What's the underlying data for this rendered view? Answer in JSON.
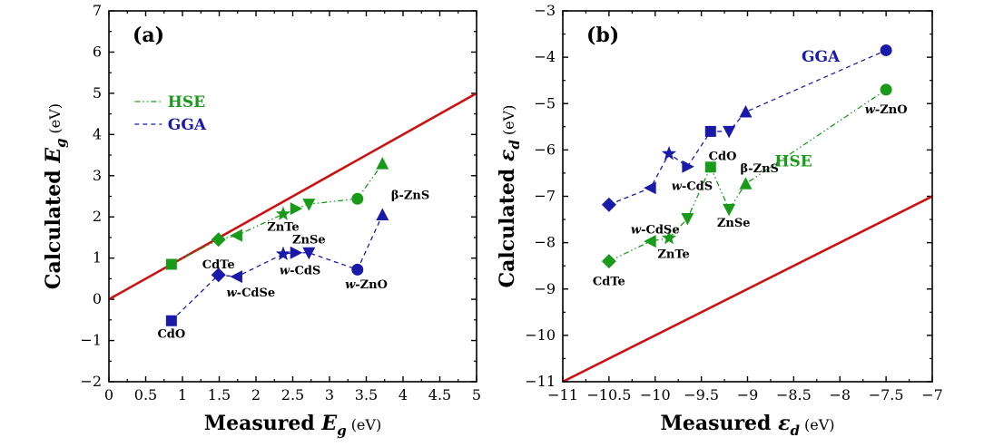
{
  "chart_data": [
    {
      "type": "line",
      "panel_label": "(a)",
      "xlabel": "Measured E",
      "xlabel_sub": "g",
      "xlabel_unit": "(eV)",
      "ylabel": "Calculated E",
      "ylabel_sub": "g",
      "ylabel_unit": "(eV)",
      "xlim": [
        0,
        5
      ],
      "ylim": [
        -2,
        7
      ],
      "xticks": [
        0,
        0.5,
        1,
        1.5,
        2,
        2.5,
        3,
        3.5,
        4,
        4.5,
        5
      ],
      "xtick_labels": [
        "0",
        "0.5",
        "1",
        "1.5",
        "2",
        "2.5",
        "3",
        "3.5",
        "4",
        "4.5",
        "5"
      ],
      "yticks": [
        -2,
        -1,
        0,
        1,
        2,
        3,
        4,
        5,
        6,
        7
      ],
      "ytick_labels": [
        "−2",
        "−1",
        "0",
        "1",
        "2",
        "3",
        "4",
        "5",
        "6",
        "7"
      ],
      "reference_line": {
        "from": [
          0,
          0
        ],
        "to": [
          5,
          5
        ],
        "color": "#cc1111"
      },
      "legend": [
        {
          "name": "HSE",
          "color": "#1a9a1a"
        },
        {
          "name": "GGA",
          "color": "#1a1aa8"
        }
      ],
      "series": [
        {
          "name": "HSE",
          "color": "#1a9a1a",
          "points": [
            {
              "x": 0.85,
              "y": 0.85,
              "marker": "square"
            },
            {
              "x": 1.49,
              "y": 1.45,
              "marker": "diamond"
            },
            {
              "x": 1.74,
              "y": 1.55,
              "marker": "triangle-left"
            },
            {
              "x": 2.37,
              "y": 2.07,
              "marker": "star"
            },
            {
              "x": 2.54,
              "y": 2.2,
              "marker": "triangle-right"
            },
            {
              "x": 2.72,
              "y": 2.31,
              "marker": "triangle-down"
            },
            {
              "x": 3.38,
              "y": 2.44,
              "marker": "circle"
            },
            {
              "x": 3.72,
              "y": 3.29,
              "marker": "triangle-up"
            }
          ]
        },
        {
          "name": "GGA",
          "color": "#1a1aa8",
          "points": [
            {
              "x": 0.85,
              "y": -0.52,
              "marker": "square"
            },
            {
              "x": 1.49,
              "y": 0.59,
              "marker": "diamond"
            },
            {
              "x": 1.74,
              "y": 0.55,
              "marker": "triangle-left"
            },
            {
              "x": 2.37,
              "y": 1.1,
              "marker": "star"
            },
            {
              "x": 2.54,
              "y": 1.13,
              "marker": "triangle-right"
            },
            {
              "x": 2.72,
              "y": 1.13,
              "marker": "triangle-down"
            },
            {
              "x": 3.38,
              "y": 0.72,
              "marker": "circle"
            },
            {
              "x": 3.72,
              "y": 2.05,
              "marker": "triangle-up"
            }
          ]
        }
      ],
      "annotations": [
        {
          "text": "CdO",
          "x": 0.85,
          "y": -0.8
        },
        {
          "text": "CdTe",
          "x": 1.49,
          "y": 0.84
        },
        {
          "text": "w-CdSe",
          "x": 1.93,
          "y": 0.16
        },
        {
          "text": "ZnTe",
          "x": 2.37,
          "y": 1.75
        },
        {
          "text": "ZnSe",
          "x": 2.72,
          "y": 1.44
        },
        {
          "text": "w-CdS",
          "x": 2.6,
          "y": 0.7
        },
        {
          "text": "w-ZnO",
          "x": 3.5,
          "y": 0.36
        },
        {
          "text": "β-ZnS",
          "x": 4.1,
          "y": 2.52
        }
      ]
    },
    {
      "type": "line",
      "panel_label": "(b)",
      "xlabel": "Measured ε",
      "xlabel_sub": "d",
      "xlabel_unit": "(eV)",
      "ylabel": "Calculated ε",
      "ylabel_sub": "d",
      "ylabel_unit": "(eV)",
      "xlim": [
        -11,
        -7
      ],
      "ylim": [
        -11,
        -3
      ],
      "xticks": [
        -11,
        -10.5,
        -10,
        -9.5,
        -9,
        -8.5,
        -8,
        -7.5,
        -7
      ],
      "xtick_labels": [
        "−11",
        "−10.5",
        "−10",
        "−9.5",
        "−9",
        "−8.5",
        "−8",
        "−7.5",
        "−7"
      ],
      "yticks": [
        -11,
        -10,
        -9,
        -8,
        -7,
        -6,
        -5,
        -4,
        -3
      ],
      "ytick_labels": [
        "−11",
        "−10",
        "−9",
        "−8",
        "−7",
        "−6",
        "−5",
        "−4",
        "−3"
      ],
      "reference_line": {
        "from": [
          -11,
          -11
        ],
        "to": [
          -7,
          -7
        ],
        "color": "#cc1111"
      },
      "series_labels": [
        {
          "name": "GGA",
          "color": "#1a1aa8",
          "x": -8.0,
          "y": -4.1
        },
        {
          "name": "HSE",
          "color": "#1a9a1a",
          "x": -8.3,
          "y": -6.35
        }
      ],
      "series": [
        {
          "name": "GGA",
          "color": "#1a1aa8",
          "points": [
            {
              "x": -10.5,
              "y": -7.18,
              "marker": "diamond"
            },
            {
              "x": -10.05,
              "y": -6.82,
              "marker": "triangle-left"
            },
            {
              "x": -9.85,
              "y": -6.08,
              "marker": "star"
            },
            {
              "x": -9.65,
              "y": -6.36,
              "marker": "triangle-right"
            },
            {
              "x": -9.4,
              "y": -5.6,
              "marker": "square"
            },
            {
              "x": -9.2,
              "y": -5.6,
              "marker": "triangle-down"
            },
            {
              "x": -9.02,
              "y": -5.18,
              "marker": "triangle-up"
            },
            {
              "x": -7.5,
              "y": -3.85,
              "marker": "circle"
            }
          ]
        },
        {
          "name": "HSE",
          "color": "#1a9a1a",
          "points": [
            {
              "x": -10.5,
              "y": -8.4,
              "marker": "diamond"
            },
            {
              "x": -10.05,
              "y": -7.97,
              "marker": "triangle-left"
            },
            {
              "x": -9.85,
              "y": -7.9,
              "marker": "star"
            },
            {
              "x": -9.65,
              "y": -7.48,
              "marker": "triangle-down"
            },
            {
              "x": -9.4,
              "y": -6.37,
              "marker": "square"
            },
            {
              "x": -9.2,
              "y": -7.28,
              "marker": "triangle-down"
            },
            {
              "x": -9.02,
              "y": -6.73,
              "marker": "triangle-up"
            },
            {
              "x": -7.5,
              "y": -4.7,
              "marker": "circle"
            }
          ]
        }
      ],
      "annotations": [
        {
          "text": "CdTe",
          "x": -10.5,
          "y": -8.8
        },
        {
          "text": "w-CdSe",
          "x": -10.0,
          "y": -7.72
        },
        {
          "text": "ZnTe",
          "x": -9.8,
          "y": -8.25
        },
        {
          "text": "w-CdS",
          "x": -9.6,
          "y": -6.78
        },
        {
          "text": "CdO",
          "x": -9.27,
          "y": -6.14
        },
        {
          "text": "β-ZnS",
          "x": -8.87,
          "y": -6.4
        },
        {
          "text": "ZnSe",
          "x": -9.15,
          "y": -7.58
        },
        {
          "text": "w-ZnO",
          "x": -7.5,
          "y": -5.13
        }
      ]
    }
  ]
}
